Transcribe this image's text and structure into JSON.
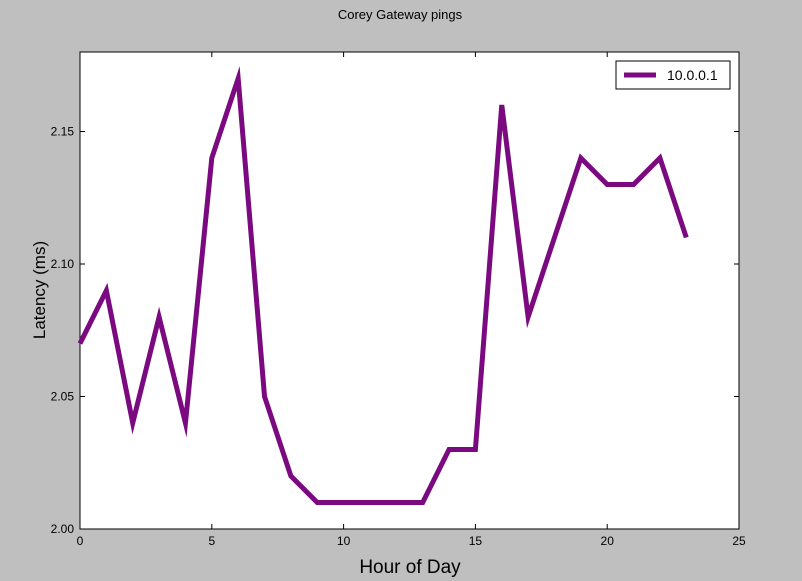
{
  "chart_data": {
    "type": "line",
    "title": "Corey Gateway pings",
    "xlabel": "Hour of Day",
    "ylabel": "Latency (ms)",
    "xlim": [
      0,
      25
    ],
    "ylim": [
      2.0,
      2.18
    ],
    "xticks": [
      0,
      5,
      10,
      15,
      20,
      25
    ],
    "xtick_labels": [
      "0",
      "5",
      "10",
      "15",
      "20",
      "25"
    ],
    "yticks": [
      2.0,
      2.05,
      2.1,
      2.15
    ],
    "ytick_labels": [
      "2.00",
      "2.05",
      "2.10",
      "2.15"
    ],
    "grid": false,
    "legend_position": "top-right",
    "series": [
      {
        "name": "10.0.0.1",
        "color": "#7b0a80",
        "x": [
          0,
          1,
          2,
          3,
          4,
          5,
          6,
          7,
          8,
          9,
          10,
          11,
          12,
          13,
          14,
          15,
          16,
          17,
          18,
          19,
          20,
          21,
          22,
          23
        ],
        "y": [
          2.07,
          2.09,
          2.04,
          2.08,
          2.04,
          2.14,
          2.17,
          2.05,
          2.02,
          2.01,
          2.01,
          2.01,
          2.01,
          2.01,
          2.03,
          2.03,
          2.16,
          2.08,
          2.11,
          2.14,
          2.13,
          2.13,
          2.14,
          2.11
        ]
      }
    ]
  }
}
